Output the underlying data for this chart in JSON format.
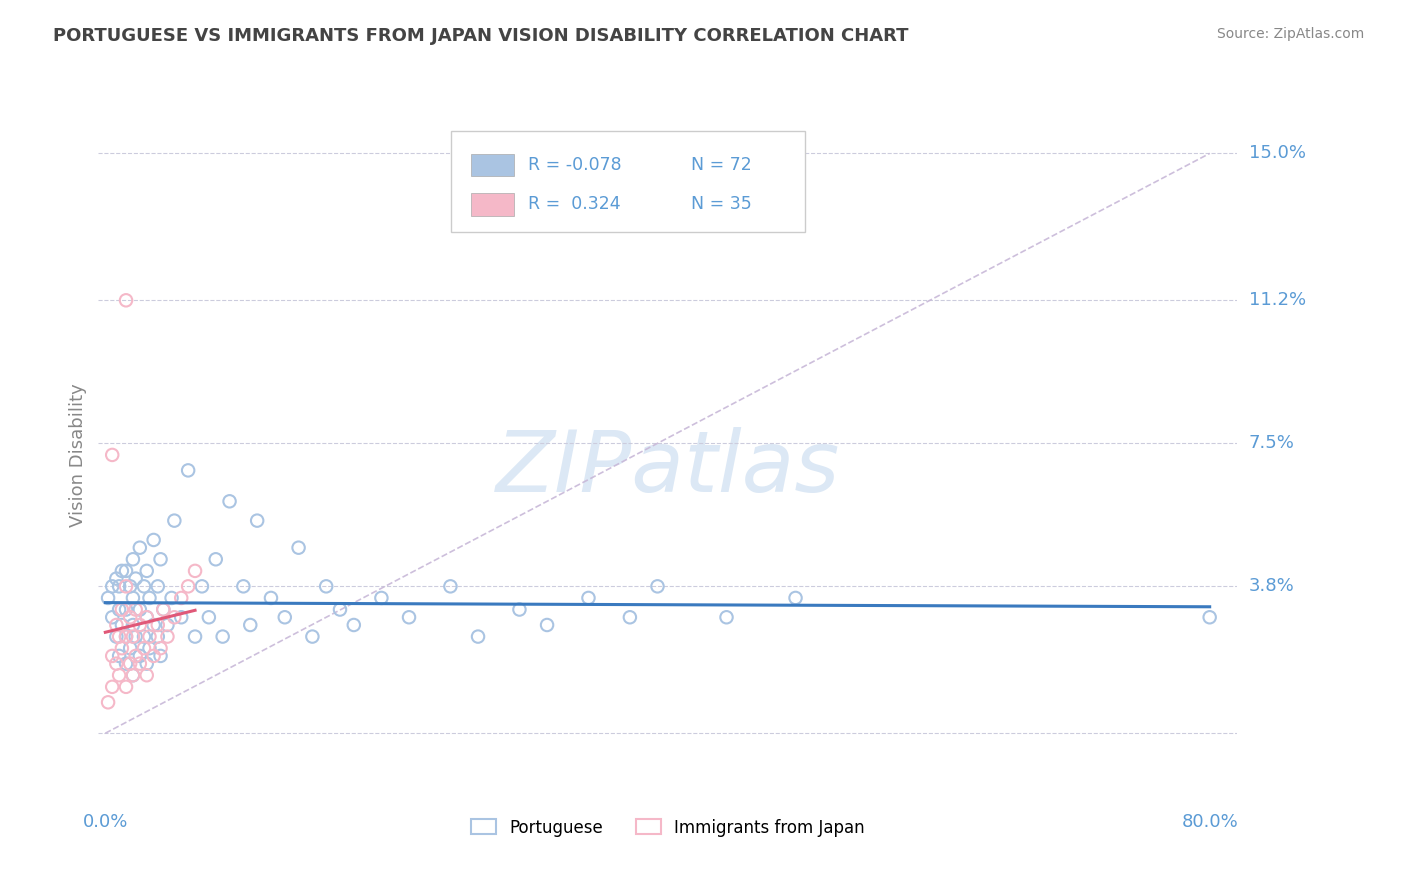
{
  "title": "PORTUGUESE VS IMMIGRANTS FROM JAPAN VISION DISABILITY CORRELATION CHART",
  "source": "Source: ZipAtlas.com",
  "ylabel": "Vision Disability",
  "yticks": [
    0.0,
    0.038,
    0.075,
    0.112,
    0.15
  ],
  "ytick_labels": [
    "",
    "3.8%",
    "7.5%",
    "11.2%",
    "15.0%"
  ],
  "xlim": [
    -0.005,
    0.82
  ],
  "ylim": [
    -0.018,
    0.162
  ],
  "legend_labels": [
    "Portuguese",
    "Immigrants from Japan"
  ],
  "blue_R": "-0.078",
  "blue_N": "72",
  "pink_R": "0.324",
  "pink_N": "35",
  "blue_color": "#aac4e2",
  "pink_color": "#f5b8c8",
  "blue_line_color": "#3a7abf",
  "pink_line_color": "#e05878",
  "ref_line_color": "#c8b8d8",
  "title_color": "#444444",
  "axis_color": "#5b9bd5",
  "watermark_color": "#dce8f5",
  "portuguese_x": [
    0.002,
    0.005,
    0.005,
    0.008,
    0.008,
    0.01,
    0.01,
    0.01,
    0.012,
    0.012,
    0.015,
    0.015,
    0.015,
    0.015,
    0.018,
    0.018,
    0.02,
    0.02,
    0.02,
    0.02,
    0.022,
    0.022,
    0.025,
    0.025,
    0.025,
    0.028,
    0.028,
    0.03,
    0.03,
    0.03,
    0.032,
    0.032,
    0.035,
    0.035,
    0.038,
    0.038,
    0.04,
    0.04,
    0.042,
    0.045,
    0.048,
    0.05,
    0.055,
    0.06,
    0.065,
    0.07,
    0.075,
    0.08,
    0.085,
    0.09,
    0.1,
    0.105,
    0.11,
    0.12,
    0.13,
    0.14,
    0.15,
    0.16,
    0.17,
    0.18,
    0.2,
    0.22,
    0.25,
    0.27,
    0.3,
    0.32,
    0.35,
    0.38,
    0.4,
    0.45,
    0.5,
    0.8
  ],
  "portuguese_y": [
    0.035,
    0.03,
    0.038,
    0.025,
    0.04,
    0.02,
    0.032,
    0.038,
    0.028,
    0.042,
    0.018,
    0.025,
    0.032,
    0.042,
    0.022,
    0.038,
    0.015,
    0.028,
    0.035,
    0.045,
    0.025,
    0.04,
    0.02,
    0.032,
    0.048,
    0.025,
    0.038,
    0.018,
    0.03,
    0.042,
    0.022,
    0.035,
    0.028,
    0.05,
    0.025,
    0.038,
    0.02,
    0.045,
    0.032,
    0.028,
    0.035,
    0.055,
    0.03,
    0.068,
    0.025,
    0.038,
    0.03,
    0.045,
    0.025,
    0.06,
    0.038,
    0.028,
    0.055,
    0.035,
    0.03,
    0.048,
    0.025,
    0.038,
    0.032,
    0.028,
    0.035,
    0.03,
    0.038,
    0.025,
    0.032,
    0.028,
    0.035,
    0.03,
    0.038,
    0.03,
    0.035,
    0.03
  ],
  "japan_x": [
    0.002,
    0.005,
    0.005,
    0.008,
    0.008,
    0.01,
    0.01,
    0.012,
    0.012,
    0.015,
    0.015,
    0.015,
    0.018,
    0.018,
    0.02,
    0.02,
    0.022,
    0.022,
    0.025,
    0.025,
    0.028,
    0.03,
    0.03,
    0.032,
    0.035,
    0.038,
    0.04,
    0.042,
    0.045,
    0.05,
    0.055,
    0.06,
    0.065,
    0.015,
    0.005
  ],
  "japan_y": [
    0.008,
    0.012,
    0.02,
    0.018,
    0.028,
    0.015,
    0.025,
    0.022,
    0.032,
    0.012,
    0.025,
    0.038,
    0.018,
    0.03,
    0.015,
    0.025,
    0.02,
    0.032,
    0.018,
    0.028,
    0.022,
    0.015,
    0.03,
    0.025,
    0.02,
    0.028,
    0.022,
    0.032,
    0.025,
    0.03,
    0.035,
    0.038,
    0.042,
    0.112,
    0.072
  ]
}
